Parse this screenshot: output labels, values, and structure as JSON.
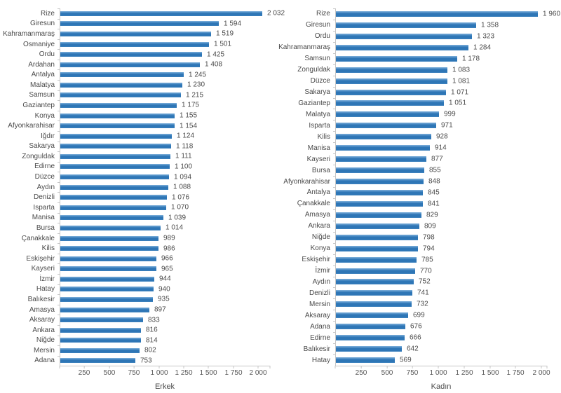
{
  "colors": {
    "bar_core": "#2e76b6",
    "bar_edge": "#7fb1dc",
    "axis_line": "#c6c6c6",
    "label_text": "#4a4a4a"
  },
  "chart_data": [
    {
      "type": "bar",
      "orientation": "horizontal",
      "xlabel": "Erkek",
      "xlim": [
        0,
        2000
      ],
      "grid": false,
      "xticks": [
        "250",
        "500",
        "750",
        "1 000",
        "1 250",
        "1 500",
        "1 750",
        "2 000"
      ],
      "categories": [
        "Rize",
        "Giresun",
        "Kahramanmaraş",
        "Osmaniye",
        "Ordu",
        "Ardahan",
        "Antalya",
        "Malatya",
        "Samsun",
        "Gaziantep",
        "Konya",
        "Afyonkarahisar",
        "Iğdır",
        "Sakarya",
        "Zonguldak",
        "Edirne",
        "Düzce",
        "Aydın",
        "Denizli",
        "Isparta",
        "Manisa",
        "Bursa",
        "Çanakkale",
        "Kilis",
        "Eskişehir",
        "Kayseri",
        "İzmir",
        "Hatay",
        "Balıkesir",
        "Amasya",
        "Aksaray",
        "Ankara",
        "Niğde",
        "Mersin",
        "Adana"
      ],
      "values": [
        2032,
        1594,
        1519,
        1501,
        1425,
        1408,
        1245,
        1230,
        1215,
        1175,
        1155,
        1154,
        1124,
        1118,
        1111,
        1100,
        1094,
        1088,
        1076,
        1070,
        1039,
        1014,
        989,
        986,
        966,
        965,
        944,
        940,
        935,
        897,
        833,
        816,
        814,
        802,
        753
      ],
      "value_labels": [
        "2 032",
        "1 594",
        "1 519",
        "1 501",
        "1 425",
        "1 408",
        "1 245",
        "1 230",
        "1 215",
        "1 175",
        "1 155",
        "1 154",
        "1 124",
        "1 118",
        "1 111",
        "1 100",
        "1 094",
        "1 088",
        "1 076",
        "1 070",
        "1 039",
        "1 014",
        "989",
        "986",
        "966",
        "965",
        "944",
        "940",
        "935",
        "897",
        "833",
        "816",
        "814",
        "802",
        "753"
      ]
    },
    {
      "type": "bar",
      "orientation": "horizontal",
      "xlabel": "Kadın",
      "xlim": [
        0,
        2000
      ],
      "grid": false,
      "xticks": [
        "250",
        "500",
        "750",
        "1 000",
        "1 250",
        "1 500",
        "1 750",
        "2 000"
      ],
      "categories": [
        "Rize",
        "Giresun",
        "Ordu",
        "Kahramanmaraş",
        "Samsun",
        "Zonguldak",
        "Düzce",
        "Sakarya",
        "Gaziantep",
        "Malatya",
        "Isparta",
        "Kilis",
        "Manisa",
        "Kayseri",
        "Bursa",
        "Afyonkarahisar",
        "Antalya",
        "Çanakkale",
        "Amasya",
        "Ankara",
        "Niğde",
        "Konya",
        "Eskişehir",
        "İzmir",
        "Aydın",
        "Denizli",
        "Mersin",
        "Aksaray",
        "Adana",
        "Edirne",
        "Balıkesir",
        "Hatay"
      ],
      "values": [
        1960,
        1358,
        1323,
        1284,
        1178,
        1083,
        1081,
        1071,
        1051,
        999,
        971,
        928,
        914,
        877,
        855,
        848,
        845,
        841,
        829,
        809,
        798,
        794,
        785,
        770,
        752,
        741,
        732,
        699,
        676,
        666,
        642,
        569
      ],
      "value_labels": [
        "1 960",
        "1 358",
        "1 323",
        "1 284",
        "1 178",
        "1 083",
        "1 081",
        "1 071",
        "1 051",
        "999",
        "971",
        "928",
        "914",
        "877",
        "855",
        "848",
        "845",
        "841",
        "829",
        "809",
        "798",
        "794",
        "785",
        "770",
        "752",
        "741",
        "732",
        "699",
        "676",
        "666",
        "642",
        "569"
      ]
    }
  ]
}
